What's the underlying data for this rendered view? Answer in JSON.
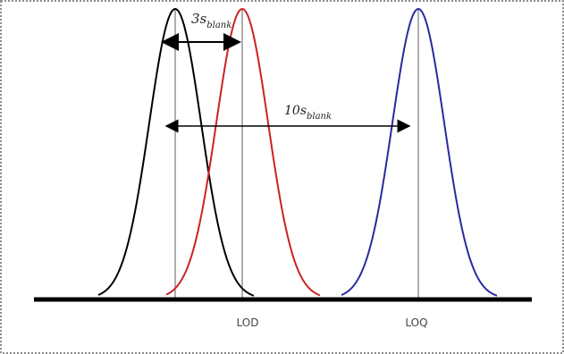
{
  "labels": {
    "lod": "LOD",
    "loq": "LOQ"
  },
  "annotations": {
    "three_s": {
      "prefix": "3s",
      "subscript": "blank"
    },
    "ten_s": {
      "prefix": "10s",
      "subscript": "blank"
    }
  },
  "colors": {
    "blank_curve": "#000000",
    "lod_curve": "#cc2222",
    "loq_curve": "#2a2aa0",
    "baseline": "#000000",
    "border": "#666666",
    "vertical_lines": "#777777"
  },
  "curves": [
    {
      "name": "blank"
    },
    {
      "name": "lod"
    },
    {
      "name": "loq"
    }
  ]
}
